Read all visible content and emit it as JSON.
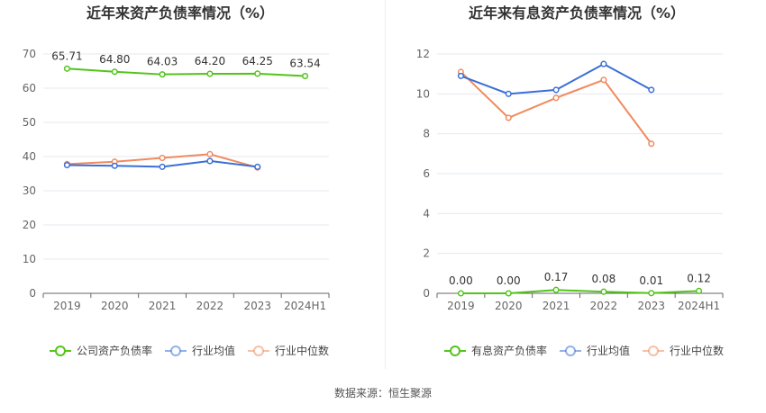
{
  "footer": {
    "source": "数据来源：恒生聚源"
  },
  "chart_data": [
    {
      "type": "line",
      "title": "近年来资产负债率情况（%）",
      "categories": [
        "2019",
        "2020",
        "2021",
        "2022",
        "2023",
        "2024H1"
      ],
      "ylim": [
        0,
        70
      ],
      "yticks": [
        0,
        10,
        20,
        30,
        40,
        50,
        60,
        70
      ],
      "grid": true,
      "legend_position": "bottom",
      "series": [
        {
          "name": "公司资产负债率",
          "color": "#52c41a",
          "labeled": true,
          "values": [
            65.71,
            64.8,
            64.03,
            64.2,
            64.25,
            63.54
          ],
          "labels": [
            "65.71",
            "64.80",
            "64.03",
            "64.20",
            "64.25",
            "63.54"
          ]
        },
        {
          "name": "行业均值",
          "color": "#3b6fd6",
          "labeled": false,
          "values": [
            37.5,
            37.3,
            37.0,
            38.7,
            37.0,
            null
          ]
        },
        {
          "name": "行业中位数",
          "color": "#f08a5d",
          "labeled": false,
          "values": [
            37.8,
            38.5,
            39.6,
            40.7,
            36.8,
            null
          ]
        }
      ]
    },
    {
      "type": "line",
      "title": "近年来有息资产负债率情况（%）",
      "categories": [
        "2019",
        "2020",
        "2021",
        "2022",
        "2023",
        "2024H1"
      ],
      "ylim": [
        0,
        12
      ],
      "yticks": [
        0,
        2,
        4,
        6,
        8,
        10,
        12
      ],
      "grid": true,
      "legend_position": "bottom",
      "series": [
        {
          "name": "有息资产负债率",
          "color": "#52c41a",
          "labeled": true,
          "values": [
            0.0,
            0.0,
            0.17,
            0.08,
            0.01,
            0.12
          ],
          "labels": [
            "0.00",
            "0.00",
            "0.17",
            "0.08",
            "0.01",
            "0.12"
          ]
        },
        {
          "name": "行业均值",
          "color": "#3b6fd6",
          "labeled": false,
          "values": [
            10.9,
            10.0,
            10.2,
            11.5,
            10.2,
            null
          ]
        },
        {
          "name": "行业中位数",
          "color": "#f08a5d",
          "labeled": false,
          "values": [
            11.1,
            8.8,
            9.8,
            10.7,
            7.5,
            null
          ]
        }
      ]
    }
  ]
}
